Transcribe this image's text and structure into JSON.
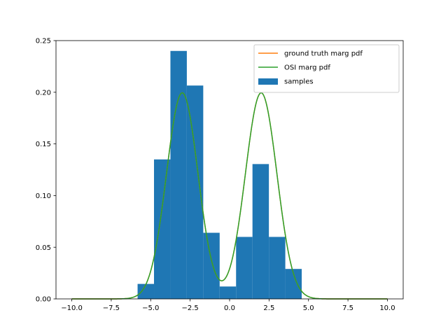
{
  "chart_data": {
    "type": "bar",
    "title": "",
    "xlabel": "",
    "ylabel": "",
    "xlim": [
      -11,
      11
    ],
    "ylim": [
      0,
      0.25
    ],
    "grid": false,
    "legend_position": "upper-right",
    "xticks": [
      -10.0,
      -7.5,
      -5.0,
      -2.5,
      0.0,
      2.5,
      5.0,
      7.5,
      10.0
    ],
    "xtick_labels": [
      "−10.0",
      "−7.5",
      "−5.0",
      "−2.5",
      "0.0",
      "2.5",
      "5.0",
      "7.5",
      "10.0"
    ],
    "yticks": [
      0.0,
      0.05,
      0.1,
      0.15,
      0.2,
      0.25
    ],
    "ytick_labels": [
      "0.00",
      "0.05",
      "0.10",
      "0.15",
      "0.20",
      "0.25"
    ],
    "histogram": {
      "name": "samples",
      "color": "#1f77b4",
      "bins": [
        {
          "x0": -5.83,
          "x1": -4.79,
          "value": 0.0145
        },
        {
          "x0": -4.79,
          "x1": -3.75,
          "value": 0.135
        },
        {
          "x0": -3.75,
          "x1": -2.71,
          "value": 0.24
        },
        {
          "x0": -2.71,
          "x1": -1.67,
          "value": 0.2065
        },
        {
          "x0": -1.67,
          "x1": -0.63,
          "value": 0.064
        },
        {
          "x0": -0.63,
          "x1": 0.41,
          "value": 0.012
        },
        {
          "x0": 0.41,
          "x1": 1.45,
          "value": 0.06
        },
        {
          "x0": 1.45,
          "x1": 2.49,
          "value": 0.1305
        },
        {
          "x0": 2.49,
          "x1": 3.53,
          "value": 0.06
        },
        {
          "x0": 3.53,
          "x1": 4.57,
          "value": 0.029
        }
      ]
    },
    "curves": [
      {
        "name": "ground truth marg pdf",
        "color": "#ff7f0e",
        "components": [
          {
            "weight": 0.5,
            "mean": -3.0,
            "sd": 1.0
          },
          {
            "weight": 0.5,
            "mean": 2.0,
            "sd": 1.0
          }
        ],
        "x_range": [
          -10,
          10
        ]
      },
      {
        "name": "OSI marg pdf",
        "color": "#2ca02c",
        "components": [
          {
            "weight": 0.5,
            "mean": -3.0,
            "sd": 1.0
          },
          {
            "weight": 0.5,
            "mean": 2.0,
            "sd": 1.0
          }
        ],
        "x_range": [
          -10,
          10
        ]
      }
    ],
    "legend": [
      {
        "label": "ground truth marg pdf",
        "kind": "line",
        "color": "#ff7f0e"
      },
      {
        "label": "OSI marg pdf",
        "kind": "line",
        "color": "#2ca02c"
      },
      {
        "label": "samples",
        "kind": "patch",
        "color": "#1f77b4"
      }
    ]
  }
}
